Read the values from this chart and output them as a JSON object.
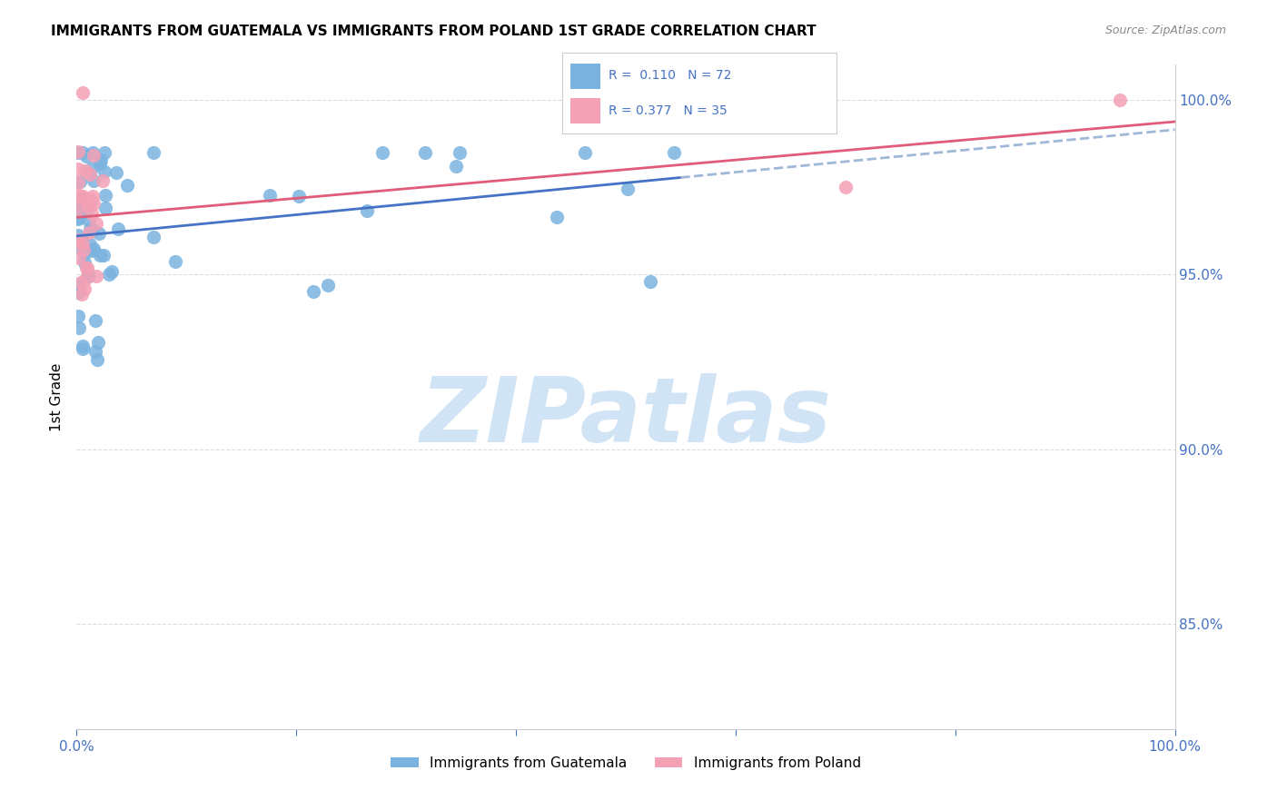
{
  "title": "IMMIGRANTS FROM GUATEMALA VS IMMIGRANTS FROM POLAND 1ST GRADE CORRELATION CHART",
  "source": "Source: ZipAtlas.com",
  "ylabel": "1st Grade",
  "right_yticks": [
    "100.0%",
    "95.0%",
    "90.0%",
    "85.0%"
  ],
  "right_ytick_vals": [
    1.0,
    0.95,
    0.9,
    0.85
  ],
  "R_guatemala": 0.11,
  "N_guatemala": 72,
  "R_poland": 0.377,
  "N_poland": 35,
  "color_guatemala": "#7ab3e0",
  "color_poland": "#f4a0b5",
  "color_trendline_guatemala": "#4472c4",
  "color_trendline_poland": "#e05c7a",
  "color_extrapolate": "#a0b8d8",
  "watermark_color": "#d0e4f5",
  "xlim": [
    0.0,
    1.0
  ],
  "ylim": [
    0.82,
    1.01
  ]
}
